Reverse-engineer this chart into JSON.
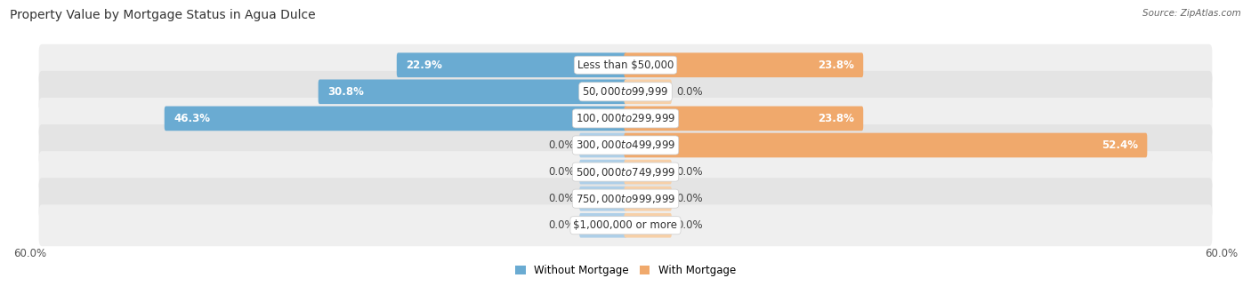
{
  "title": "Property Value by Mortgage Status in Agua Dulce",
  "source": "Source: ZipAtlas.com",
  "categories": [
    "Less than $50,000",
    "$50,000 to $99,999",
    "$100,000 to $299,999",
    "$300,000 to $499,999",
    "$500,000 to $749,999",
    "$750,000 to $999,999",
    "$1,000,000 or more"
  ],
  "without_mortgage": [
    22.9,
    30.8,
    46.3,
    0.0,
    0.0,
    0.0,
    0.0
  ],
  "with_mortgage": [
    23.8,
    0.0,
    23.8,
    52.4,
    0.0,
    0.0,
    0.0
  ],
  "x_max": 60.0,
  "color_without": "#6aabd2",
  "color_with": "#f0a96c",
  "color_without_light": "#aecfe8",
  "color_with_light": "#f7d0a8",
  "bg_row_light": "#efefef",
  "bg_row_dark": "#e4e4e4",
  "title_fontsize": 10,
  "label_fontsize": 8.5,
  "cat_fontsize": 8.5,
  "legend_fontsize": 8.5,
  "axis_label_fontsize": 8.5,
  "stub_size": 4.5,
  "inside_label_threshold": 10.0
}
